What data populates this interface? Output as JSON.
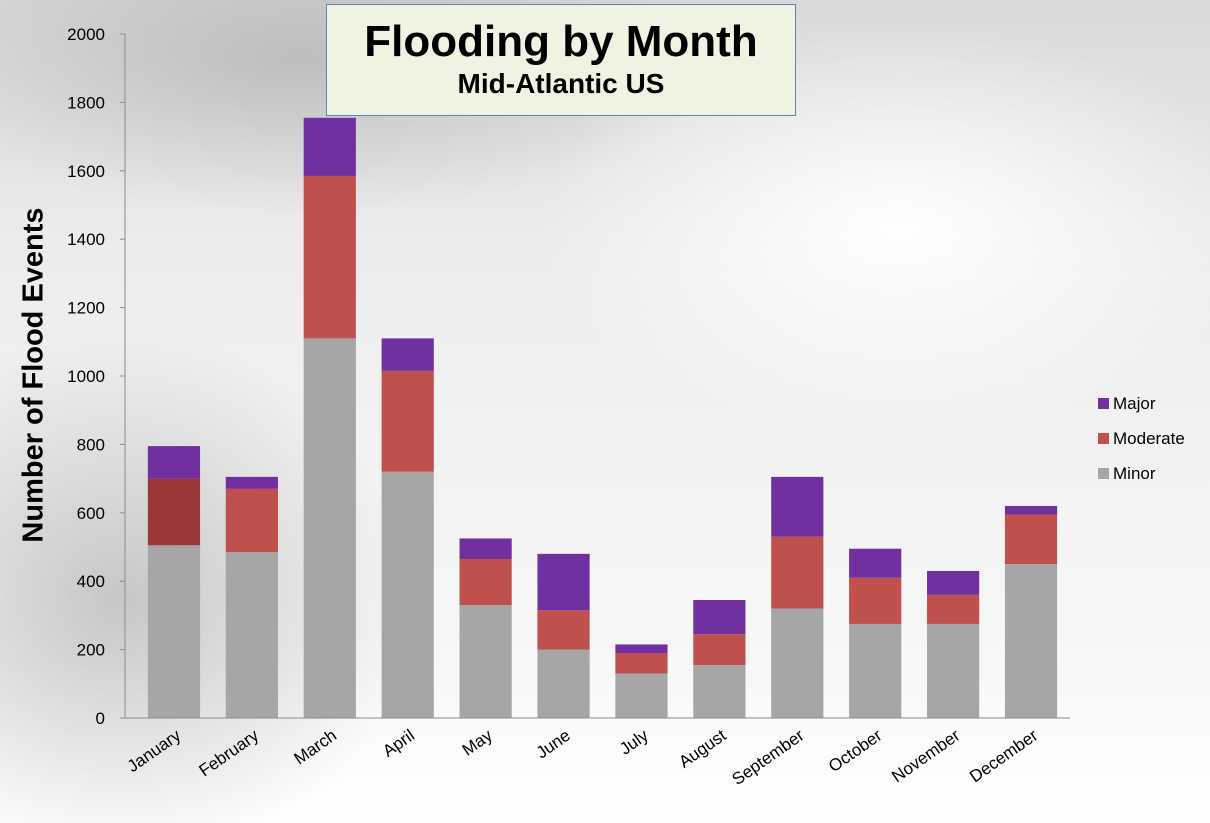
{
  "chart_data": {
    "type": "bar",
    "stacked": true,
    "title": "Flooding by Month",
    "subtitle": "Mid-Atlantic US",
    "ylabel": "Number of Flood Events",
    "xlabel": "",
    "ylim": [
      0,
      2000
    ],
    "yticks": [
      0,
      200,
      400,
      600,
      800,
      1000,
      1200,
      1400,
      1600,
      1800,
      2000
    ],
    "grid": false,
    "legend_position": "right",
    "categories": [
      "January",
      "February",
      "March",
      "April",
      "May",
      "June",
      "July",
      "August",
      "September",
      "October",
      "November",
      "December"
    ],
    "series": [
      {
        "name": "Minor",
        "color": "#a6a6a6",
        "values": [
          505,
          485,
          1110,
          720,
          330,
          200,
          130,
          155,
          320,
          275,
          275,
          450
        ]
      },
      {
        "name": "Moderate",
        "color": "#c0504d",
        "values": [
          195,
          185,
          475,
          295,
          135,
          115,
          60,
          90,
          210,
          135,
          85,
          145
        ]
      },
      {
        "name": "Major",
        "color": "#7030a0",
        "values": [
          95,
          35,
          170,
          95,
          60,
          165,
          25,
          100,
          175,
          85,
          70,
          25
        ]
      }
    ],
    "highlight": {
      "category": "January",
      "series": "Moderate",
      "color": "#9b3737"
    }
  }
}
